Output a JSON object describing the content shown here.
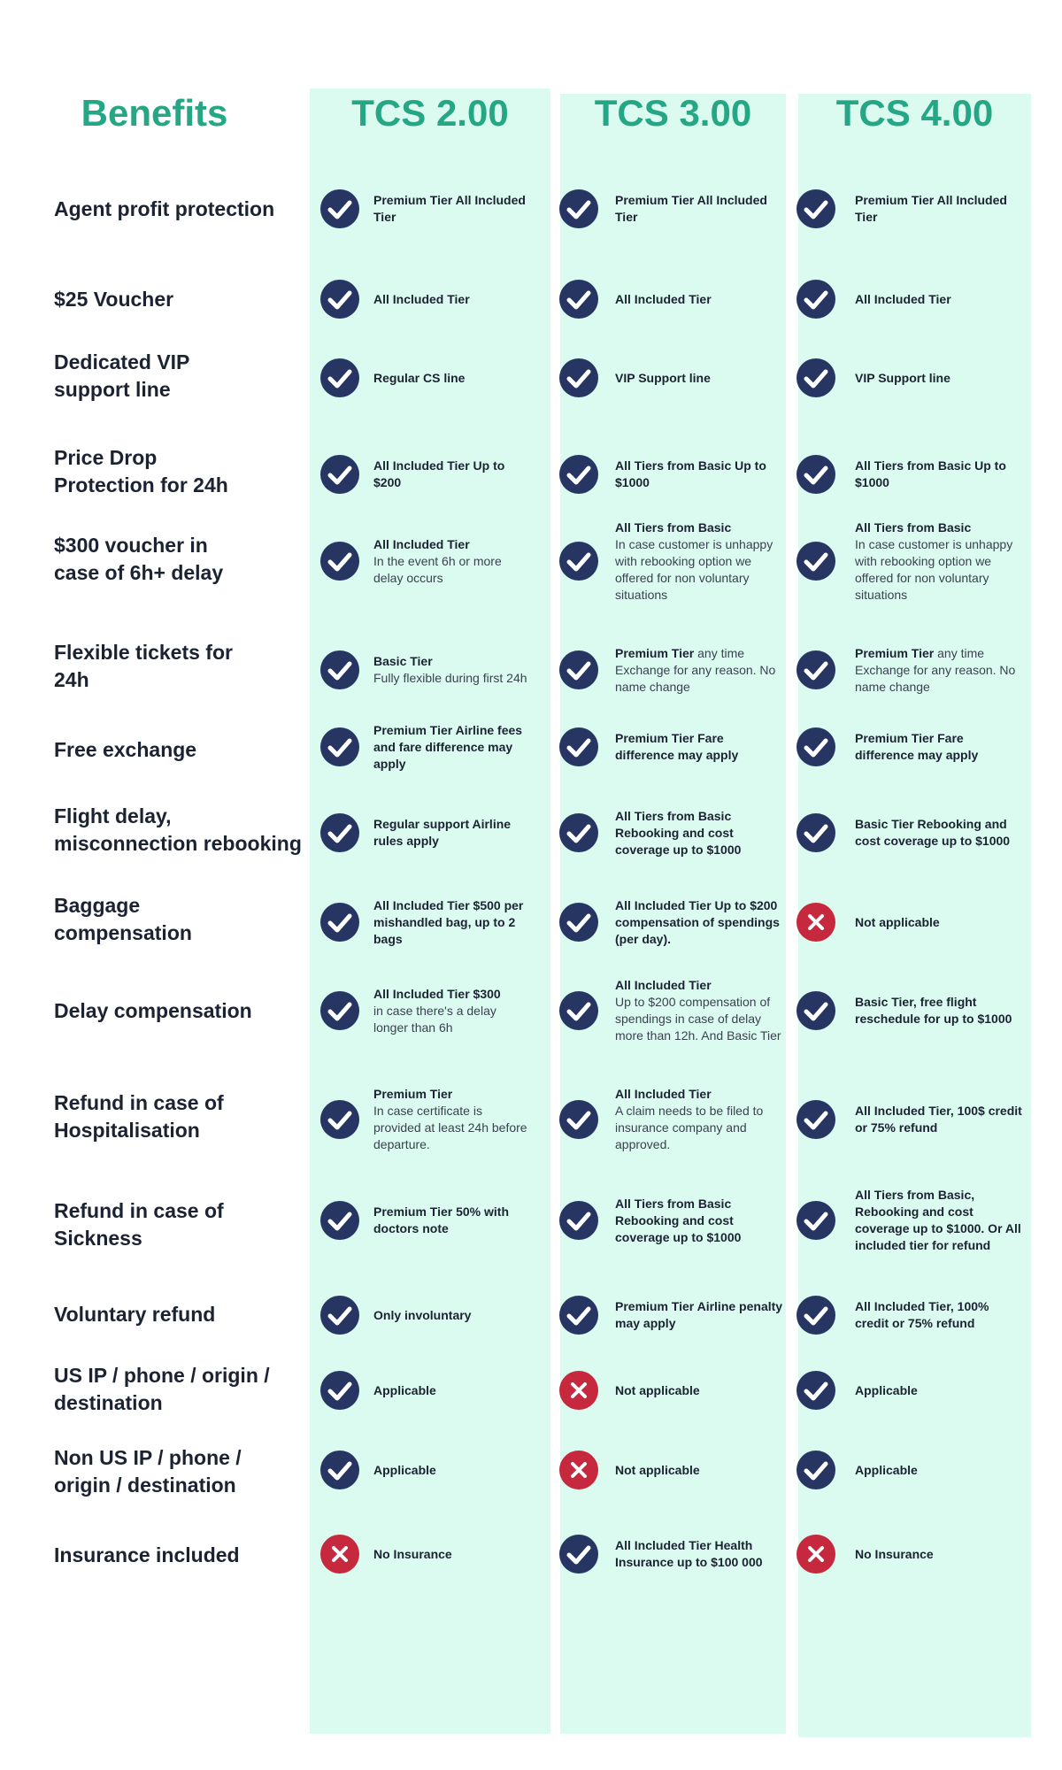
{
  "header": {
    "benefits_title": "Benefits",
    "columns": [
      "TCS 2.00",
      "TCS 3.00",
      "TCS 4.00"
    ]
  },
  "colors": {
    "accent": "#25a785",
    "column_bg": "#dcfbf0",
    "check": "#273563",
    "cross": "#c6283d"
  },
  "rows": [
    {
      "label": "Agent profit protection",
      "cells": [
        {
          "status": "check-icon",
          "strong": "Premium Tier All Included Tier",
          "desc": ""
        },
        {
          "status": "check-icon",
          "strong": "Premium Tier All Included Tier",
          "desc": ""
        },
        {
          "status": "check-icon",
          "strong": "Premium Tier All Included Tier",
          "desc": ""
        }
      ]
    },
    {
      "label": "$25 Voucher",
      "cells": [
        {
          "status": "check-icon",
          "strong": "All Included Tier",
          "desc": ""
        },
        {
          "status": "check-icon",
          "strong": "All Included Tier",
          "desc": ""
        },
        {
          "status": "check-icon",
          "strong": "All Included Tier",
          "desc": ""
        }
      ]
    },
    {
      "label": "Dedicated VIP\nsupport line",
      "cells": [
        {
          "status": "check-icon",
          "strong": "Regular CS line",
          "desc": ""
        },
        {
          "status": "check-icon",
          "strong": "VIP Support line",
          "desc": ""
        },
        {
          "status": "check-icon",
          "strong": "VIP Support line",
          "desc": ""
        }
      ]
    },
    {
      "label": "Price Drop\nProtection for 24h",
      "cells": [
        {
          "status": "check-icon",
          "strong": "All Included Tier Up to $200",
          "desc": ""
        },
        {
          "status": "check-icon",
          "strong": "All Tiers from Basic Up to $1000",
          "desc": ""
        },
        {
          "status": "check-icon",
          "strong": "All Tiers from Basic Up to $1000",
          "desc": ""
        }
      ]
    },
    {
      "label": "$300 voucher in\ncase of 6h+ delay",
      "cells": [
        {
          "status": "check-icon",
          "strong": "All Included Tier",
          "desc": "In the event 6h or more delay occurs"
        },
        {
          "status": "check-icon",
          "strong": "All Tiers from Basic",
          "desc": "In case customer is unhappy with rebooking option we offered for non voluntary situations"
        },
        {
          "status": "check-icon",
          "strong": "All Tiers from Basic",
          "desc": "In case customer is unhappy with rebooking option we offered for non voluntary situations"
        }
      ]
    },
    {
      "label": "Flexible tickets for\n24h",
      "cells": [
        {
          "status": "check-icon",
          "strong": "Basic Tier",
          "desc": "Fully flexible during first 24h"
        },
        {
          "status": "check-icon",
          "strong": "Premium Tier",
          "inline": true,
          "desc": "any time Exchange for any reason. No name change"
        },
        {
          "status": "check-icon",
          "strong": "Premium Tier",
          "inline": true,
          "desc": "any time Exchange for any reason. No name change"
        }
      ]
    },
    {
      "label": "Free exchange",
      "cells": [
        {
          "status": "check-icon",
          "strong": "Premium Tier Airline fees and fare difference may apply",
          "desc": ""
        },
        {
          "status": "check-icon",
          "strong": "Premium Tier Fare difference may apply",
          "desc": ""
        },
        {
          "status": "check-icon",
          "strong": "Premium Tier Fare difference may apply",
          "desc": ""
        }
      ]
    },
    {
      "label": "Flight delay,\nmisconnection rebooking",
      "cells": [
        {
          "status": "check-icon",
          "strong": "Regular support Airline rules apply",
          "desc": ""
        },
        {
          "status": "check-icon",
          "strong": "All Tiers from Basic Rebooking and cost coverage up to $1000",
          "desc": ""
        },
        {
          "status": "check-icon",
          "strong": "Basic Tier Rebooking and cost coverage up to $1000",
          "desc": ""
        }
      ]
    },
    {
      "label": "Baggage\ncompensation",
      "cells": [
        {
          "status": "check-icon",
          "strong": "All Included Tier $500 per mishandled bag, up to 2 bags",
          "desc": ""
        },
        {
          "status": "check-icon",
          "strong": "All Included Tier Up to $200 compensation of spendings (per day).",
          "desc": ""
        },
        {
          "status": "cross-icon",
          "strong": "Not applicable",
          "desc": ""
        }
      ]
    },
    {
      "label": "Delay compensation",
      "cells": [
        {
          "status": "check-icon",
          "strong": "All Included Tier $300",
          "desc": "in case there's a delay longer than 6h"
        },
        {
          "status": "check-icon",
          "strong": "All Included Tier",
          "desc": "Up to $200 compensation of spendings in case of delay more than 12h. And Basic Tier"
        },
        {
          "status": "check-icon",
          "strong": "Basic Tier, free flight reschedule for up to $1000",
          "desc": ""
        }
      ]
    },
    {
      "label": "Refund in case of\nHospitalisation",
      "cells": [
        {
          "status": "check-icon",
          "strong": "Premium Tier",
          "desc": "In case certificate is provided at least 24h before departure."
        },
        {
          "status": "check-icon",
          "strong": "All Included Tier",
          "desc": "A claim needs to be filed to insurance company and approved."
        },
        {
          "status": "check-icon",
          "strong": "All Included Tier, 100$ credit or 75% refund",
          "desc": ""
        }
      ]
    },
    {
      "label": "Refund in case of\nSickness",
      "cells": [
        {
          "status": "check-icon",
          "strong": "Premium Tier 50% with doctors note",
          "desc": ""
        },
        {
          "status": "check-icon",
          "strong": "All Tiers from Basic Rebooking and cost coverage up to $1000",
          "desc": ""
        },
        {
          "status": "check-icon",
          "strong": "All Tiers from Basic, Rebooking and cost coverage up to $1000. Or All included tier for refund",
          "desc": ""
        }
      ]
    },
    {
      "label": "Voluntary refund",
      "cells": [
        {
          "status": "check-icon",
          "strong": "Only involuntary",
          "desc": ""
        },
        {
          "status": "check-icon",
          "strong": "Premium Tier Airline penalty may apply",
          "desc": ""
        },
        {
          "status": "check-icon",
          "strong": "All Included Tier, 100% credit or 75% refund",
          "desc": ""
        }
      ]
    },
    {
      "label": "US IP / phone / origin /\ndestination",
      "cells": [
        {
          "status": "check-icon",
          "strong": "Applicable",
          "desc": ""
        },
        {
          "status": "cross-icon",
          "strong": "Not applicable",
          "desc": ""
        },
        {
          "status": "check-icon",
          "strong": "Applicable",
          "desc": ""
        }
      ]
    },
    {
      "label": "Non US IP / phone /\norigin / destination",
      "cells": [
        {
          "status": "check-icon",
          "strong": "Applicable",
          "desc": ""
        },
        {
          "status": "cross-icon",
          "strong": "Not applicable",
          "desc": ""
        },
        {
          "status": "check-icon",
          "strong": "Applicable",
          "desc": ""
        }
      ]
    },
    {
      "label": "Insurance included",
      "cells": [
        {
          "status": "cross-icon",
          "strong": "No Insurance",
          "desc": ""
        },
        {
          "status": "check-icon",
          "strong": "All Included Tier Health Insurance up to $100 000",
          "desc": ""
        },
        {
          "status": "cross-icon",
          "strong": "No Insurance",
          "desc": ""
        }
      ]
    }
  ]
}
